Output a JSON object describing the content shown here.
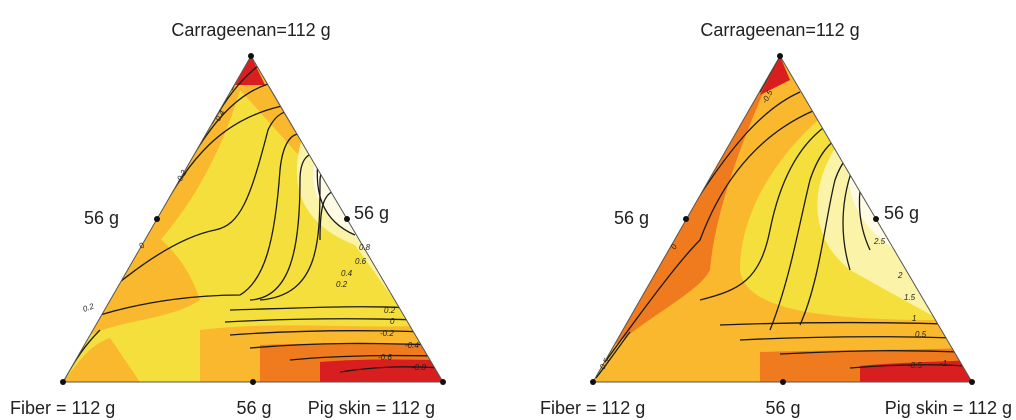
{
  "colors": {
    "low": "#d81e1e",
    "mid_low": "#f07a1e",
    "mid": "#f9b82d",
    "mid_high": "#f5df3c",
    "high": "#fbf3a8",
    "top": "#fffbe6"
  },
  "chart_data": [
    {
      "type": "ternary-contour",
      "vertices": {
        "top": "Carrageenan=112 g",
        "bottom_left": "Fiber = 112 g",
        "bottom_right": "Pig skin = 112 g"
      },
      "midpoints": {
        "left": "56 g",
        "right": "56 g",
        "bottom": "56 g"
      },
      "contour_labels": [
        "-0.4",
        "-0.2",
        "0",
        "0.2",
        "0.2",
        "0.4",
        "0.6",
        "0.8",
        "0.2",
        "0",
        "-0.2",
        "-0.4",
        "-0.6",
        "-0.8"
      ]
    },
    {
      "type": "ternary-contour",
      "vertices": {
        "top": "Carrageenan=112 g",
        "bottom_left": "Fiber = 112 g",
        "bottom_right": "Pig skin = 112 g"
      },
      "midpoints": {
        "left": "56 g",
        "right": "56 g",
        "bottom": "56 g"
      },
      "contour_labels": [
        "-0.5",
        "0",
        "0.5",
        "2.5",
        "2",
        "1.5",
        "1",
        "0.5",
        "-0.5",
        "-1"
      ]
    }
  ]
}
